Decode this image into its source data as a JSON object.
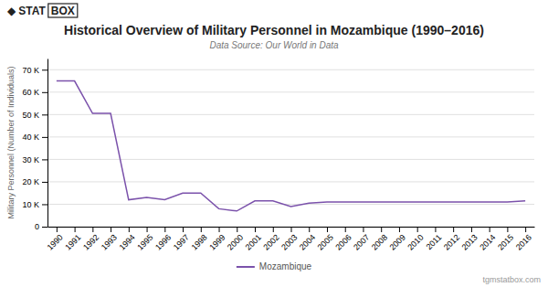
{
  "chart_data": {
    "type": "line",
    "title": "Historical Overview of Military Personnel in Mozambique (1990–2016)",
    "subtitle": "Data Source: Our World in Data",
    "ylabel": "Military Personnel (Number of Individuals)",
    "annotations": [
      "◆",
      "STAT",
      "BOX",
      "tgmstatbox.com"
    ],
    "x": [
      1990,
      1991,
      1992,
      1993,
      1994,
      1995,
      1996,
      1997,
      1998,
      1999,
      2000,
      2001,
      2002,
      2003,
      2004,
      2005,
      2006,
      2007,
      2008,
      2009,
      2010,
      2011,
      2012,
      2013,
      2014,
      2015,
      2016
    ],
    "series": [
      {
        "name": "Mozambique",
        "color": "#7b52ab",
        "values": [
          65000,
          65000,
          50500,
          50500,
          12000,
          13000,
          12000,
          15000,
          15000,
          8000,
          7000,
          11500,
          11500,
          9000,
          10500,
          11000,
          11000,
          11000,
          11000,
          11000,
          11000,
          11000,
          11000,
          11000,
          11000,
          11000,
          11500
        ]
      }
    ],
    "xlim": [
      1989.5,
      2016.5
    ],
    "xticks": [
      1990,
      1991,
      1992,
      1993,
      1994,
      1995,
      1996,
      1997,
      1998,
      1999,
      2000,
      2001,
      2002,
      2003,
      2004,
      2005,
      2006,
      2007,
      2008,
      2009,
      2010,
      2011,
      2012,
      2013,
      2014,
      2015,
      2016
    ],
    "ylim": [
      0,
      75000
    ],
    "yticks": [
      0,
      {
        "value": 10000,
        "label": "10 K"
      },
      {
        "value": 20000,
        "label": "20 K"
      },
      {
        "value": 30000,
        "label": "30 K"
      },
      {
        "value": 40000,
        "label": "40 K"
      },
      {
        "value": 50000,
        "label": "50 K"
      },
      {
        "value": 60000,
        "label": "60 K"
      },
      {
        "value": 70000,
        "label": "70 K"
      }
    ],
    "grid": true,
    "legend": "bottom"
  }
}
